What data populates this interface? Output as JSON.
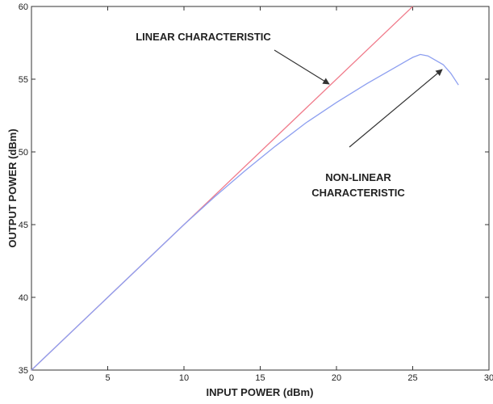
{
  "chart_data": {
    "type": "line",
    "xlabel": "INPUT POWER (dBm)",
    "ylabel": "OUTPUT POWER (dBm)",
    "xlim": [
      0,
      30
    ],
    "ylim": [
      35,
      60
    ],
    "xticks": [
      0,
      5,
      10,
      15,
      20,
      25,
      30
    ],
    "yticks": [
      35,
      40,
      45,
      50,
      55,
      60
    ],
    "series": [
      {
        "color": "#f07a8a",
        "x": [
          0,
          25
        ],
        "values": [
          35,
          60
        ]
      },
      {
        "color": "#8d9ff0",
        "x": [
          0,
          5,
          10,
          12,
          14,
          16,
          18,
          20,
          22,
          24,
          25,
          25.5,
          26,
          27,
          27.5,
          28
        ],
        "values": [
          35,
          40,
          45,
          46.9,
          48.7,
          50.4,
          52.0,
          53.4,
          54.7,
          55.9,
          56.5,
          56.7,
          56.6,
          56.0,
          55.4,
          54.6
        ]
      }
    ],
    "annotations": [
      {
        "lines": [
          "LINEAR CHARACTERISTIC"
        ]
      },
      {
        "lines": [
          "NON-LINEAR",
          "CHARACTERISTIC"
        ]
      }
    ]
  }
}
